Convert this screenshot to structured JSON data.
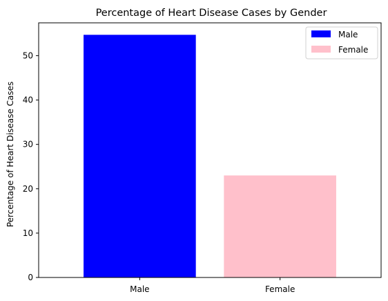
{
  "chart_data": {
    "type": "bar",
    "title": "Percentage of Heart Disease Cases by Gender",
    "xlabel": "",
    "ylabel": "Percentage of Heart Disease Cases",
    "categories": [
      "Male",
      "Female"
    ],
    "values": [
      54.7,
      23.0
    ],
    "colors": [
      "#0000ff",
      "#ffc0cb"
    ],
    "ylim": [
      0,
      57.4
    ],
    "yticks": [
      0,
      10,
      20,
      30,
      40,
      50
    ],
    "grid": false,
    "legend": {
      "placement": "top-right",
      "entries": [
        {
          "label": "Male",
          "color": "#0000ff"
        },
        {
          "label": "Female",
          "color": "#ffc0cb"
        }
      ]
    }
  }
}
